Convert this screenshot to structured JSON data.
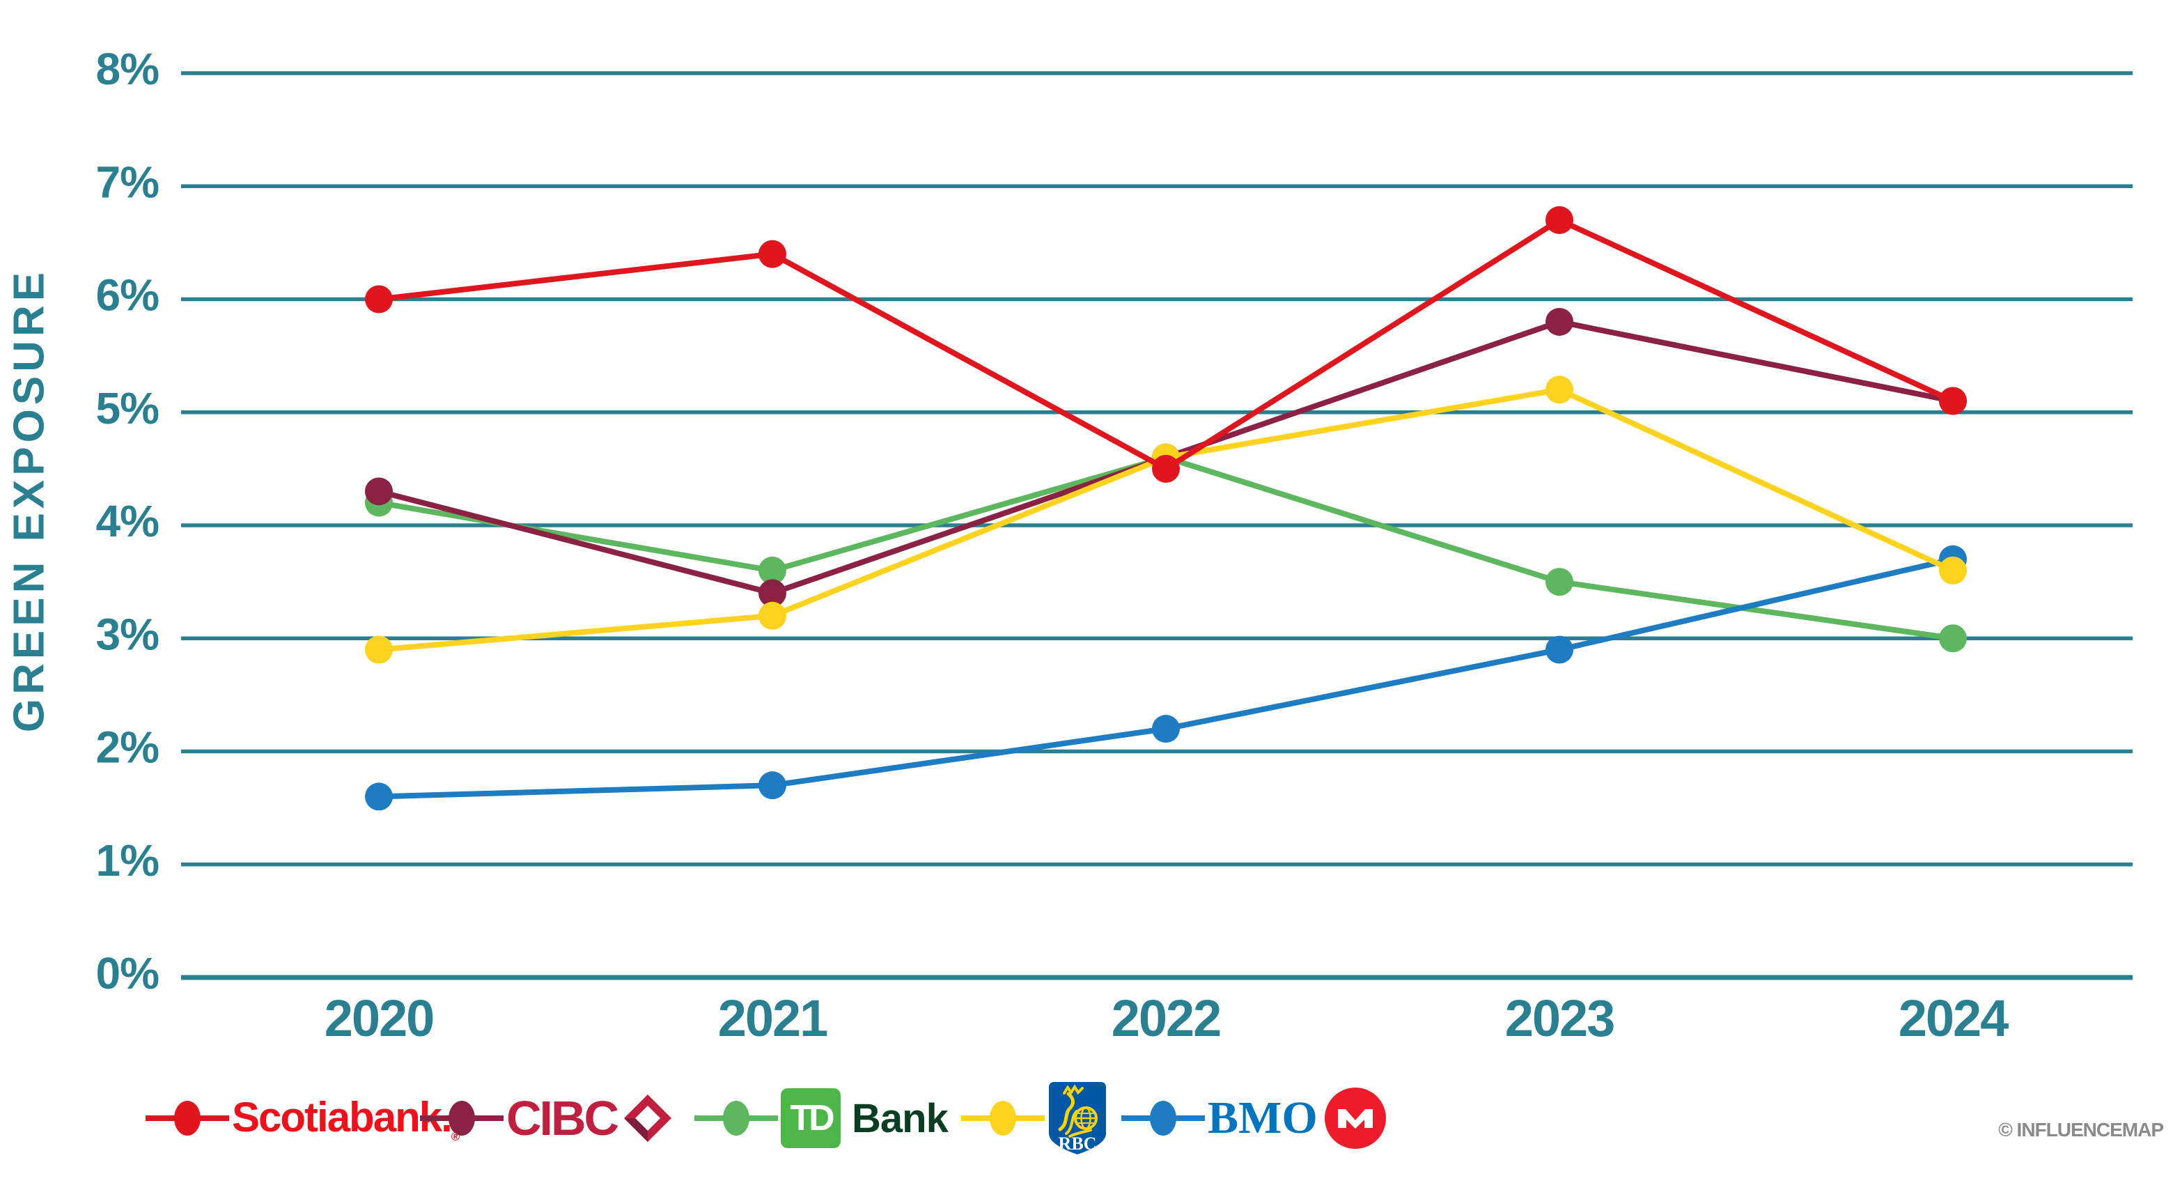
{
  "chart": {
    "ylabel": "GREEN EXPOSURE",
    "watermark": "© INFLUENCEMAP"
  },
  "chart_data": {
    "type": "line",
    "title": "",
    "ylabel": "GREEN EXPOSURE",
    "xlabel": "",
    "categories": [
      "2020",
      "2021",
      "2022",
      "2023",
      "2024"
    ],
    "series": [
      {
        "name": "Scotiabank",
        "color": "#DF161E",
        "values": [
          6.0,
          6.4,
          4.5,
          6.7,
          5.1
        ]
      },
      {
        "name": "CIBC",
        "color": "#8B2143",
        "values": [
          4.3,
          3.4,
          4.6,
          5.8,
          5.1
        ]
      },
      {
        "name": "TD Bank",
        "color": "#5CB75E",
        "values": [
          4.2,
          3.6,
          4.6,
          3.5,
          3.0
        ]
      },
      {
        "name": "RBC",
        "color": "#FED320",
        "values": [
          2.9,
          3.2,
          4.6,
          5.2,
          3.6
        ]
      },
      {
        "name": "BMO",
        "color": "#1E7CC2",
        "values": [
          1.6,
          1.7,
          2.2,
          2.9,
          3.7
        ]
      }
    ],
    "draw_order": [
      2,
      4,
      1,
      3,
      0
    ],
    "y_ticks": [
      {
        "label": "0%",
        "value": 0
      },
      {
        "label": "1%",
        "value": 1
      },
      {
        "label": "2%",
        "value": 2
      },
      {
        "label": "3%",
        "value": 3
      },
      {
        "label": "4%",
        "value": 4
      },
      {
        "label": "5%",
        "value": 5
      },
      {
        "label": "6%",
        "value": 6
      },
      {
        "label": "7%",
        "value": 7
      },
      {
        "label": "8%",
        "value": 8
      }
    ],
    "ylim": [
      0,
      8
    ],
    "grid": "horizontal-only",
    "legend_position": "bottom"
  },
  "legend": {
    "items": [
      {
        "brand": "Scotiabank",
        "marker_color": "#DF161E",
        "wordmark": "Scotiabank.",
        "reg_mark": "®",
        "wordmark_color": "#EC111A"
      },
      {
        "brand": "CIBC",
        "marker_color": "#8B2143",
        "wordmark": "CIBC",
        "wordmark_color": "#C01F3F",
        "diamond_main": "#C01F3F",
        "diamond_dark": "#7E1C3B"
      },
      {
        "brand": "TD Bank",
        "marker_color": "#5CB75E",
        "logo_td": "TD",
        "logo_bank": "Bank",
        "square_color": "#4CB648",
        "bank_color": "#0A3D22"
      },
      {
        "brand": "RBC",
        "marker_color": "#FED320",
        "shield_text": "RBC",
        "shield_color": "#0058A6",
        "lion_color": "#FFD200"
      },
      {
        "brand": "BMO",
        "marker_color": "#1E7CC2",
        "wordmark": "BMO",
        "wordmark_color": "#0075BE",
        "roundel_color": "#EC1C2D"
      }
    ]
  },
  "colors": {
    "axis_teal": "#2A8090",
    "grid_teal": "#2A7F90",
    "watermark_gray": "#8A8A8A",
    "background": "#FFFFFF"
  }
}
